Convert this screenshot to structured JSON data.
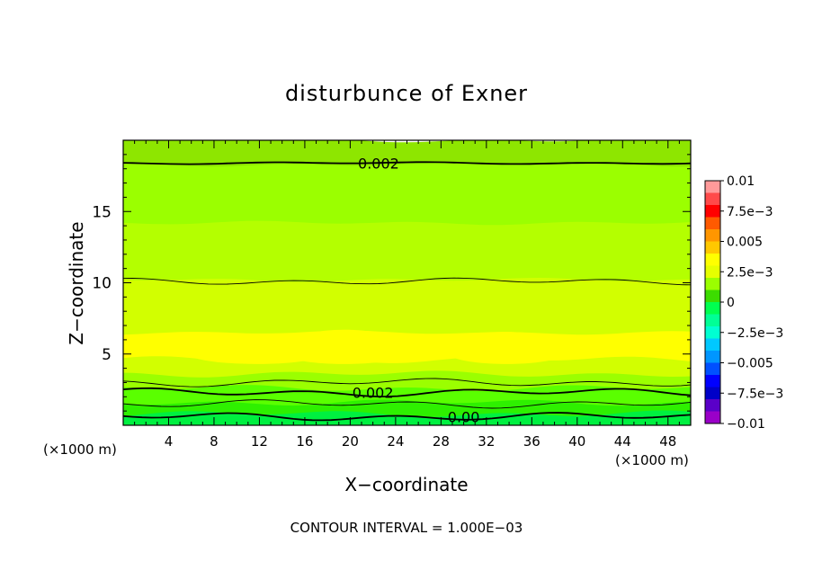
{
  "chart_data": {
    "type": "heatmap",
    "title": "disturbunce of Exner",
    "xlabel": "X−coordinate",
    "ylabel": "Z−coordinate",
    "x_unit_left": "(×1000 m)",
    "x_unit_right": "(×1000 m)",
    "xlim": [
      0,
      50
    ],
    "ylim": [
      0,
      20
    ],
    "x_ticks": [
      4,
      8,
      12,
      16,
      20,
      24,
      28,
      32,
      36,
      40,
      44,
      48
    ],
    "y_ticks": [
      5,
      10,
      15
    ],
    "footer": "CONTOUR INTERVAL = 1.000E−03",
    "contour_labels": [
      "0.002",
      "0.002",
      "0.00"
    ],
    "colorbar": {
      "labels": [
        "0.01",
        "7.5e−3",
        "0.005",
        "2.5e−3",
        "0",
        "−2.5e−3",
        "−0.005",
        "−7.5e−3",
        "−0.01"
      ],
      "colors": [
        "#ff9a9a",
        "#ff4a4a",
        "#ff0000",
        "#ff5a00",
        "#ff9600",
        "#ffc800",
        "#ffff00",
        "#e6ff00",
        "#9bff00",
        "#3cdc00",
        "#00ff50",
        "#00ff96",
        "#00ffd2",
        "#00c8ff",
        "#0096ff",
        "#0050ff",
        "#0000ff",
        "#0000c8",
        "#5a00c8",
        "#9a00c8"
      ]
    },
    "field_bands": [
      {
        "z_top": 20.0,
        "color": "#8ee600"
      },
      {
        "z_top": 18.3,
        "color": "#9bff00"
      },
      {
        "z_top": 14.2,
        "color": "#b4ff00"
      },
      {
        "z_top": 10.2,
        "color": "#d2ff00"
      },
      {
        "z_top": 6.5,
        "color": "#ffff00"
      },
      {
        "z_top": 4.6,
        "color": "#d2ff00"
      },
      {
        "z_top": 3.6,
        "color": "#9bff00"
      },
      {
        "z_top": 2.6,
        "color": "#5aff00"
      },
      {
        "z_top": 1.6,
        "color": "#2ef000"
      },
      {
        "z_top": 0.8,
        "color": "#00f040"
      }
    ]
  }
}
